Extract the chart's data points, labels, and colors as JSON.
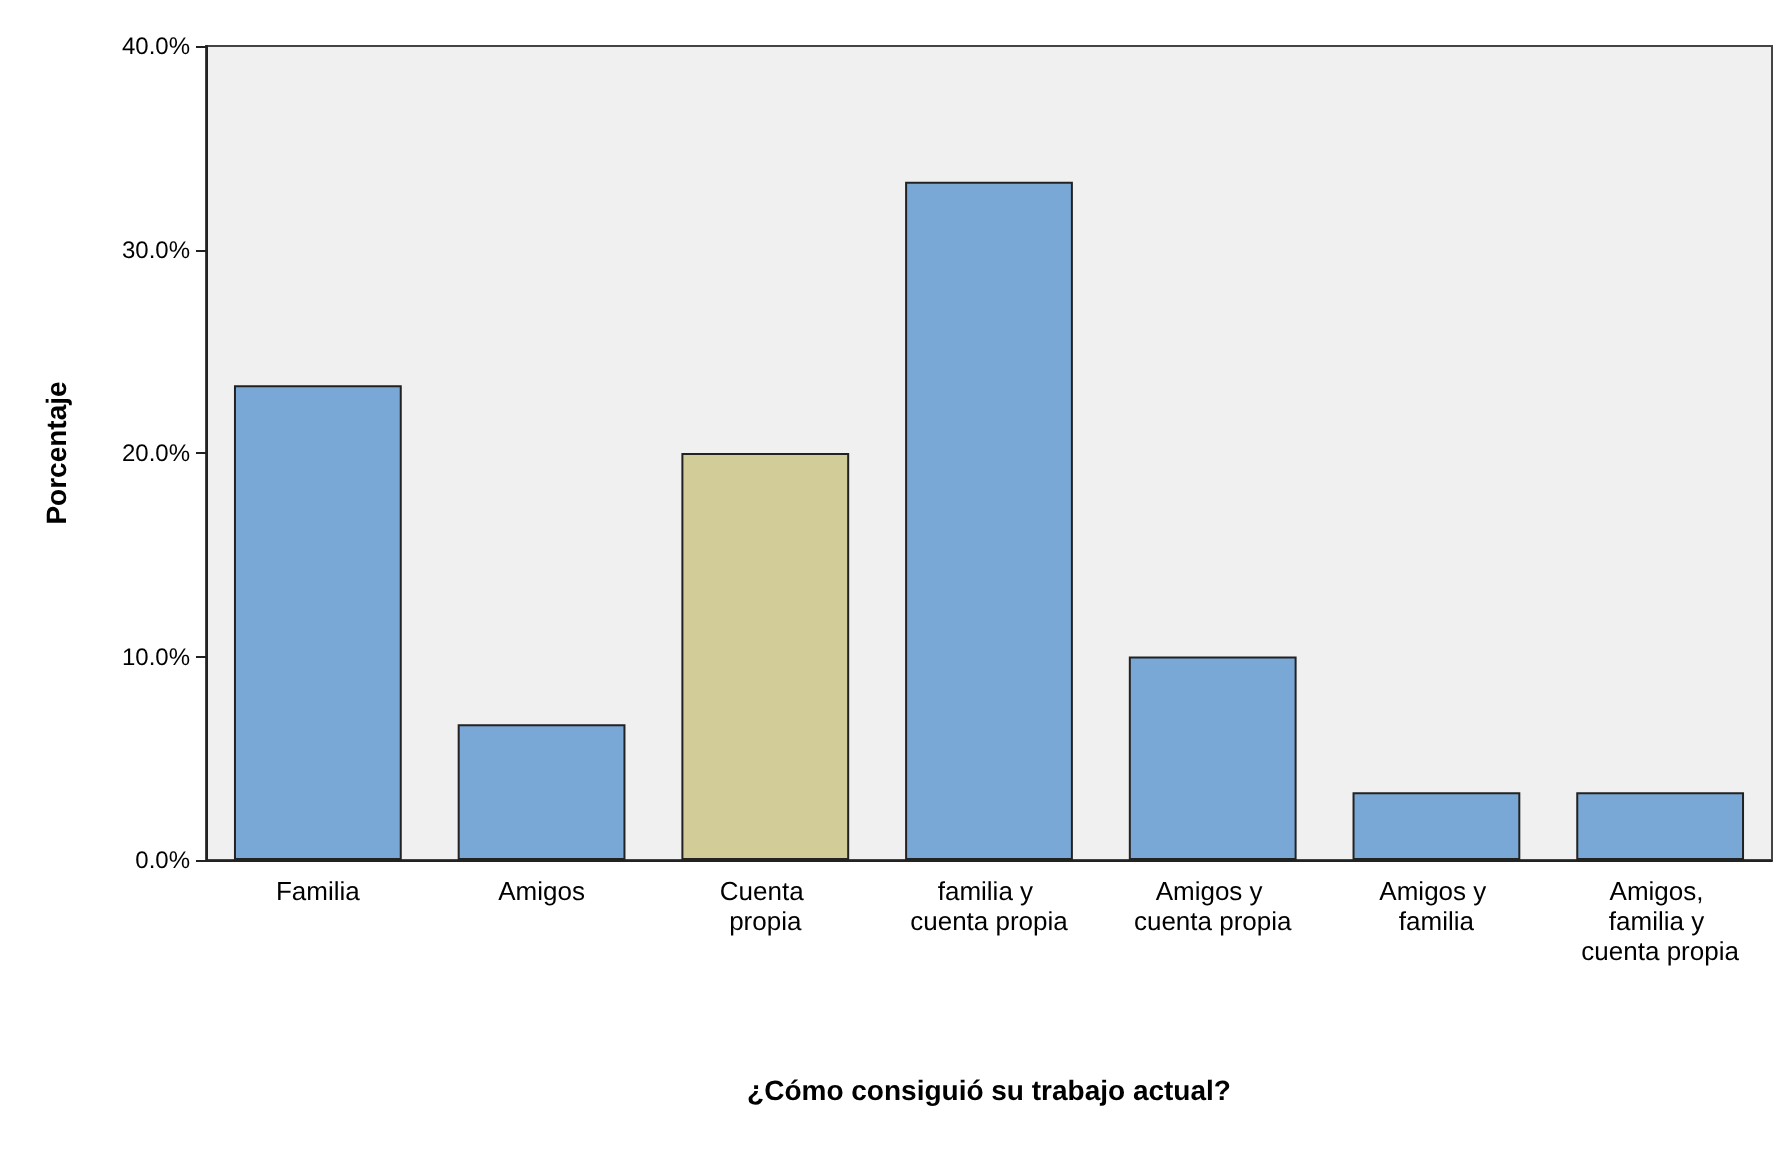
{
  "chart_data": {
    "type": "bar",
    "xlabel": "¿Cómo consiguió su trabajo actual?",
    "ylabel": "Porcentaje",
    "categories": [
      "Familia",
      "Amigos",
      "Cuenta propia",
      "familia y cuenta propia",
      "Amigos y cuenta propia",
      "Amigos y familia",
      "Amigos, familia y cuenta propia"
    ],
    "values": [
      23.33,
      6.67,
      20,
      33.33,
      10,
      3.33,
      3.33
    ],
    "colors": [
      "#79a8d6",
      "#79a8d6",
      "#d2cd98",
      "#79a8d6",
      "#79a8d6",
      "#79a8d6",
      "#79a8d6"
    ],
    "ylim": [
      0,
      40
    ],
    "yticks": [
      {
        "value": 0,
        "label": "0.0%"
      },
      {
        "value": 10,
        "label": "10.0%"
      },
      {
        "value": 20,
        "label": "20.0%"
      },
      {
        "value": 30,
        "label": "30.0%"
      },
      {
        "value": 40,
        "label": "40.0%"
      }
    ],
    "grid": false
  }
}
